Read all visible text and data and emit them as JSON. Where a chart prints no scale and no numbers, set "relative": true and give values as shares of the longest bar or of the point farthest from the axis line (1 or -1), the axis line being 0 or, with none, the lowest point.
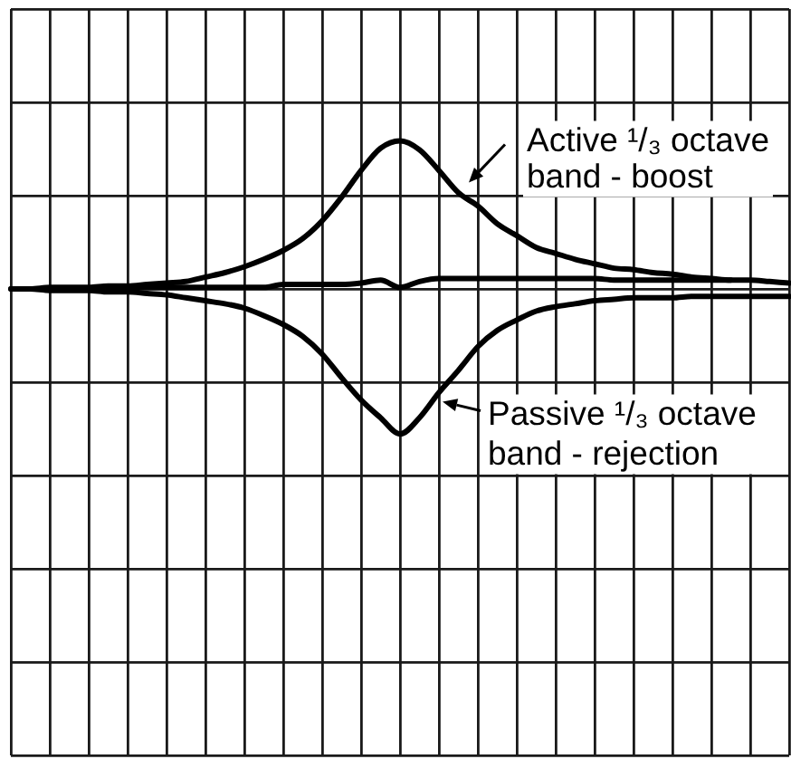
{
  "chart_data": {
    "type": "line",
    "relative": true,
    "grid": true,
    "legend": "right",
    "categories": [
      null,
      null,
      null,
      null,
      null,
      null,
      null,
      null,
      null,
      null,
      null,
      null,
      null,
      null,
      null,
      null,
      null,
      null,
      null,
      null,
      null,
      null,
      null,
      null,
      null,
      null,
      null,
      null,
      null,
      null,
      null,
      null,
      null,
      null,
      null,
      null,
      null,
      null,
      null,
      null,
      null
    ],
    "series": [
      {
        "name": "Active ¹/₃ octave band - boost",
        "color": "#000000",
        "values": [
          0,
          0,
          0.01,
          0.01,
          0.01,
          0.02,
          0.02,
          0.03,
          0.04,
          0.05,
          0.08,
          0.11,
          0.15,
          0.2,
          0.26,
          0.34,
          0.46,
          0.62,
          0.8,
          0.95,
          1,
          0.94,
          0.8,
          0.65,
          0.56,
          0.44,
          0.36,
          0.28,
          0.24,
          0.2,
          0.17,
          0.14,
          0.13,
          0.11,
          0.1,
          0.08,
          0.07,
          0.06,
          0.06,
          0.05,
          0.04
        ]
      },
      {
        "name": "Passive ¹/₃ octave band - rejection",
        "color": "#000000",
        "values": [
          0,
          0,
          -0.01,
          -0.01,
          -0.01,
          -0.02,
          -0.02,
          -0.03,
          -0.04,
          -0.06,
          -0.08,
          -0.1,
          -0.13,
          -0.18,
          -0.24,
          -0.32,
          -0.44,
          -0.6,
          -0.75,
          -0.87,
          -0.98,
          -0.87,
          -0.7,
          -0.55,
          -0.39,
          -0.28,
          -0.21,
          -0.15,
          -0.12,
          -0.1,
          -0.08,
          -0.07,
          -0.06,
          -0.06,
          -0.06,
          -0.05,
          -0.05,
          -0.05,
          -0.05,
          -0.05,
          -0.05
        ]
      },
      {
        "color": "#000000",
        "values": [
          null,
          null,
          null,
          null,
          null,
          0,
          0.01,
          0.01,
          0.01,
          0.01,
          0.01,
          0.01,
          0.01,
          0.01,
          0.03,
          0.03,
          0.03,
          0.03,
          0.04,
          0.06,
          0.01,
          0.05,
          0.07,
          0.07,
          0.07,
          0.07,
          0.07,
          0.07,
          0.07,
          0.07,
          0.07,
          0.06,
          0.06,
          0.06,
          0.06,
          0.06,
          0.06,
          0.06,
          null,
          null,
          null
        ]
      }
    ]
  }
}
